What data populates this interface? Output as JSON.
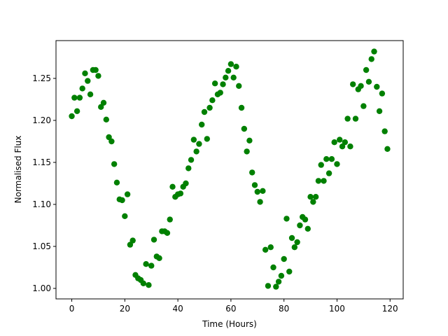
{
  "chart_data": {
    "type": "scatter",
    "x_label": "Time (Hours)",
    "y_label": "Normalised Flux",
    "color": "#008000",
    "xlim": [
      -5.95,
      124.95
    ],
    "ylim": [
      0.9875,
      1.295
    ],
    "xticks": [
      0,
      20,
      40,
      60,
      80,
      100,
      120
    ],
    "yticks": [
      {
        "value": 1.0,
        "label": "1.00"
      },
      1.05,
      {
        "value": 1.1,
        "label": "1.10"
      },
      1.15,
      {
        "value": 1.2,
        "label": "1.20"
      },
      1.25
    ],
    "x": [
      0,
      1,
      2,
      3,
      4,
      5,
      6,
      7,
      8,
      9,
      10,
      11,
      12,
      13,
      14,
      15,
      16,
      17,
      18,
      19,
      20,
      21,
      22,
      23,
      24,
      25,
      26,
      27,
      28,
      29,
      30,
      31,
      32,
      33,
      34,
      35,
      36,
      37,
      38,
      39,
      40,
      41,
      42,
      43,
      44,
      45,
      46,
      47,
      48,
      49,
      50,
      51,
      52,
      53,
      54,
      55,
      56,
      57,
      58,
      59,
      60,
      61,
      62,
      63,
      64,
      65,
      66,
      67,
      68,
      69,
      70,
      71,
      72,
      73,
      74,
      75,
      76,
      77,
      78,
      79,
      80,
      81,
      82,
      83,
      84,
      85,
      86,
      87,
      88,
      89,
      90,
      91,
      92,
      93,
      94,
      95,
      96,
      97,
      98,
      99,
      100,
      101,
      102,
      103,
      104,
      105,
      106,
      107,
      108,
      109,
      110,
      111,
      112,
      113,
      114,
      115,
      116,
      117,
      118,
      119
    ],
    "values": [
      1.205,
      1.227,
      1.211,
      1.227,
      1.238,
      1.256,
      1.247,
      1.231,
      1.26,
      1.26,
      1.253,
      1.216,
      1.221,
      1.201,
      1.18,
      1.175,
      1.148,
      1.126,
      1.106,
      1.105,
      1.086,
      1.112,
      1.052,
      1.057,
      1.016,
      1.012,
      1.01,
      1.006,
      1.029,
      1.004,
      1.027,
      1.058,
      1.038,
      1.036,
      1.068,
      1.068,
      1.066,
      1.082,
      1.121,
      1.109,
      1.112,
      1.113,
      1.121,
      1.125,
      1.143,
      1.153,
      1.177,
      1.163,
      1.172,
      1.195,
      1.21,
      1.178,
      1.215,
      1.224,
      1.244,
      1.231,
      1.233,
      1.243,
      1.251,
      1.259,
      1.267,
      1.251,
      1.264,
      1.241,
      1.215,
      1.19,
      1.163,
      1.176,
      1.138,
      1.123,
      1.115,
      1.103,
      1.116,
      1.046,
      1.003,
      1.049,
      1.025,
      1.002,
      1.008,
      1.015,
      1.035,
      1.083,
      1.02,
      1.06,
      1.049,
      1.055,
      1.075,
      1.085,
      1.082,
      1.071,
      1.109,
      1.103,
      1.109,
      1.128,
      1.147,
      1.128,
      1.154,
      1.137,
      1.154,
      1.174,
      1.148,
      1.177,
      1.169,
      1.174,
      1.202,
      1.169,
      1.243,
      1.202,
      1.237,
      1.241,
      1.217,
      1.26,
      1.246,
      1.273,
      1.282,
      1.24,
      1.211,
      1.232,
      1.187,
      1.166
    ]
  }
}
